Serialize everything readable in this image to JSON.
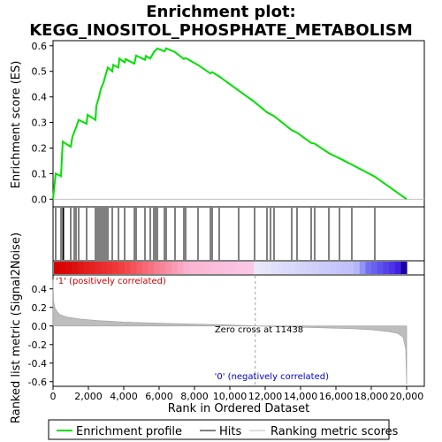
{
  "title_line1": "Enrichment plot:",
  "title_line2": "KEGG_INOSITOL_PHOSPHATE_METABOLISM",
  "es_ylabel": "Enrichment score (ES)",
  "metric_ylabel": "Ranked list metric (Signal2Noise)",
  "xlabel": "Rank in Ordered Dataset",
  "pos_label": "'1' (positively correlated)",
  "neg_label": "'0' (negatively correlated)",
  "zero_cross_label": "Zero cross at 11438",
  "legend": {
    "es": "Enrichment profile",
    "hits": "Hits",
    "metric": "Ranking metric scores"
  },
  "colors": {
    "es_line": "#00e000",
    "pos_label": "#cc0000",
    "neg_label": "#0000cc",
    "hits": "#000000",
    "metric_fill": "#bdbdbd",
    "zero_line": "#a0a0a0"
  },
  "chart_data": {
    "type": "line",
    "x_axis": {
      "min": 0,
      "max": 21000,
      "ticks": [
        0,
        2000,
        4000,
        6000,
        8000,
        10000,
        12000,
        14000,
        16000,
        18000,
        20000
      ],
      "tick_labels": [
        "0",
        "2,000",
        "4,000",
        "6,000",
        "8,000",
        "10,000",
        "12,000",
        "14,000",
        "16,000",
        "18,000",
        "20,000"
      ]
    },
    "es_axis": {
      "min": -0.03,
      "max": 0.62,
      "ticks": [
        0.0,
        0.1,
        0.2,
        0.3,
        0.4,
        0.5,
        0.6
      ],
      "tick_labels": [
        "0.0",
        "0.1",
        "0.2",
        "0.3",
        "0.4",
        "0.5",
        "0.6"
      ]
    },
    "metric_axis": {
      "min": -0.65,
      "max": 0.55,
      "ticks": [
        -0.6,
        -0.4,
        -0.2,
        0.0,
        0.2,
        0.4
      ],
      "tick_labels": [
        "-0.6",
        "-0.4",
        "-0.2",
        "0.0",
        "0.2",
        "0.4"
      ]
    },
    "zero_cross": 11438,
    "hits": [
      150,
      450,
      550,
      600,
      1000,
      1200,
      1300,
      1450,
      1900,
      2400,
      2500,
      2600,
      2700,
      2800,
      2900,
      3000,
      3100,
      3350,
      3700,
      4050,
      4600,
      4700,
      5200,
      5500,
      5700,
      5800,
      5900,
      6300,
      6400,
      6900,
      7400,
      7500,
      8200,
      8900,
      9000,
      9400,
      10500,
      11400,
      12100,
      12300,
      12500,
      13500,
      13800,
      14600,
      14800,
      15600,
      16200,
      16900,
      18200
    ],
    "es_profile": [
      [
        0,
        0.0
      ],
      [
        150,
        0.1
      ],
      [
        450,
        0.09
      ],
      [
        500,
        0.16
      ],
      [
        550,
        0.225
      ],
      [
        1000,
        0.205
      ],
      [
        1100,
        0.245
      ],
      [
        1300,
        0.28
      ],
      [
        1450,
        0.31
      ],
      [
        1900,
        0.295
      ],
      [
        1950,
        0.33
      ],
      [
        2400,
        0.31
      ],
      [
        2450,
        0.365
      ],
      [
        2600,
        0.4
      ],
      [
        2700,
        0.43
      ],
      [
        2850,
        0.455
      ],
      [
        2950,
        0.48
      ],
      [
        3100,
        0.515
      ],
      [
        3350,
        0.5
      ],
      [
        3400,
        0.525
      ],
      [
        3700,
        0.515
      ],
      [
        3750,
        0.55
      ],
      [
        4050,
        0.535
      ],
      [
        4100,
        0.548
      ],
      [
        4600,
        0.53
      ],
      [
        4700,
        0.562
      ],
      [
        5200,
        0.545
      ],
      [
        5250,
        0.56
      ],
      [
        5500,
        0.55
      ],
      [
        5700,
        0.575
      ],
      [
        5900,
        0.59
      ],
      [
        6300,
        0.578
      ],
      [
        6400,
        0.59
      ],
      [
        6900,
        0.575
      ],
      [
        7400,
        0.548
      ],
      [
        7500,
        0.552
      ],
      [
        8200,
        0.525
      ],
      [
        8900,
        0.492
      ],
      [
        9000,
        0.497
      ],
      [
        9400,
        0.48
      ],
      [
        10500,
        0.425
      ],
      [
        11400,
        0.38
      ],
      [
        12100,
        0.34
      ],
      [
        12500,
        0.325
      ],
      [
        13500,
        0.27
      ],
      [
        13800,
        0.26
      ],
      [
        14600,
        0.22
      ],
      [
        14800,
        0.217
      ],
      [
        15600,
        0.18
      ],
      [
        16200,
        0.16
      ],
      [
        16900,
        0.135
      ],
      [
        18200,
        0.088
      ],
      [
        20000,
        0.0
      ]
    ],
    "metric_profile": [
      [
        0,
        0.5
      ],
      [
        30,
        0.26
      ],
      [
        100,
        0.2
      ],
      [
        200,
        0.16
      ],
      [
        400,
        0.12
      ],
      [
        800,
        0.095
      ],
      [
        1500,
        0.075
      ],
      [
        2500,
        0.058
      ],
      [
        4000,
        0.042
      ],
      [
        6000,
        0.03
      ],
      [
        8000,
        0.02
      ],
      [
        10000,
        0.01
      ],
      [
        11438,
        0.0
      ],
      [
        13000,
        -0.008
      ],
      [
        15000,
        -0.017
      ],
      [
        17000,
        -0.03
      ],
      [
        18000,
        -0.04
      ],
      [
        19000,
        -0.06
      ],
      [
        19500,
        -0.08
      ],
      [
        19800,
        -0.12
      ],
      [
        19950,
        -0.25
      ],
      [
        20000,
        -0.63
      ]
    ]
  }
}
